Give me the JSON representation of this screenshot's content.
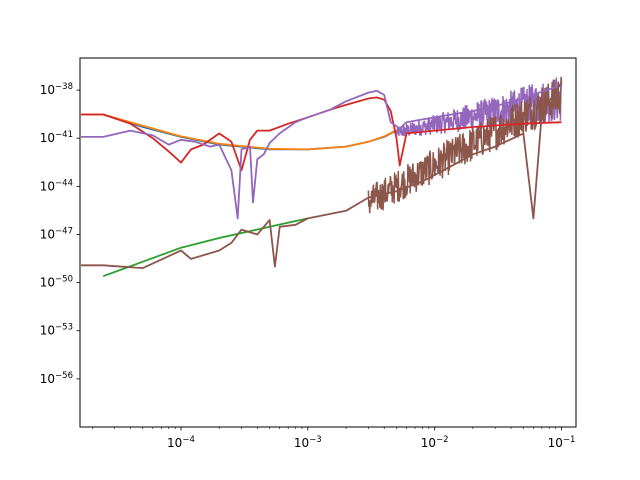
{
  "chart_data": {
    "type": "line",
    "title": "",
    "xlabel": "",
    "ylabel": "",
    "xscale": "log",
    "yscale": "log",
    "grid": false,
    "xlim": [
      1.6e-05,
      0.13
    ],
    "ylim": [
      1e-59,
      1e-36
    ],
    "xticks": [
      {
        "value": 0.0001,
        "label": "10",
        "exp": "−4"
      },
      {
        "value": 0.001,
        "label": "10",
        "exp": "−3"
      },
      {
        "value": 0.01,
        "label": "10",
        "exp": "−2"
      },
      {
        "value": 0.1,
        "label": "10",
        "exp": "−1"
      }
    ],
    "yticks": [
      {
        "value": 1e-38,
        "label": "10",
        "exp": "−38"
      },
      {
        "value": 1e-41,
        "label": "10",
        "exp": "−41"
      },
      {
        "value": 1e-44,
        "label": "10",
        "exp": "−44"
      },
      {
        "value": 1e-47,
        "label": "10",
        "exp": "−47"
      },
      {
        "value": 1e-50,
        "label": "10",
        "exp": "−50"
      },
      {
        "value": 1e-53,
        "label": "10",
        "exp": "−53"
      },
      {
        "value": 1e-56,
        "label": "10",
        "exp": "−56"
      }
    ],
    "series": [
      {
        "color": "#1f77b4",
        "points": [
          [
            1.63e-05,
            3e-40
          ],
          [
            2.44e-05,
            3e-40
          ],
          [
            5e-05,
            5e-41
          ],
          [
            0.0001,
            1.2e-41
          ],
          [
            0.0002,
            4e-42
          ],
          [
            0.0005,
            2e-42
          ],
          [
            0.001,
            2e-42
          ],
          [
            0.002,
            3e-42
          ],
          [
            0.003,
            6e-42
          ],
          [
            0.004,
            1.2e-41
          ],
          [
            0.005,
            3e-41
          ]
        ]
      },
      {
        "color": "#ff7f0e",
        "points": [
          [
            1.63e-05,
            3e-40
          ],
          [
            2.44e-05,
            3e-40
          ],
          [
            5e-05,
            6e-41
          ],
          [
            0.0001,
            1.3e-41
          ],
          [
            0.0002,
            4.5e-42
          ],
          [
            0.0005,
            2.2e-42
          ],
          [
            0.001,
            2e-42
          ],
          [
            0.002,
            3e-42
          ],
          [
            0.003,
            6e-42
          ],
          [
            0.004,
            1.3e-41
          ],
          [
            0.005,
            3.2e-41
          ]
        ]
      },
      {
        "color": "#2ca02c",
        "points": [
          [
            2.44e-05,
            2.5e-50
          ],
          [
            5e-05,
            2e-49
          ],
          [
            0.0001,
            1.5e-48
          ],
          [
            0.0002,
            6e-48
          ],
          [
            0.0005,
            3e-47
          ],
          [
            0.001,
            1e-46
          ]
        ]
      },
      {
        "color": "#d62728",
        "points": [
          [
            1.63e-05,
            3e-40
          ],
          [
            2.44e-05,
            3e-40
          ],
          [
            4e-05,
            8e-41
          ],
          [
            6e-05,
            1e-41
          ],
          [
            8e-05,
            1.5e-42
          ],
          [
            0.0001,
            3e-43
          ],
          [
            0.00012,
            2e-42
          ],
          [
            0.00015,
            4e-42
          ],
          [
            0.0002,
            2e-41
          ],
          [
            0.00025,
            6e-42
          ],
          [
            0.0003,
            1e-43
          ],
          [
            0.00035,
            8e-42
          ],
          [
            0.0004,
            3e-41
          ],
          [
            0.0005,
            3e-41
          ],
          [
            0.0007,
            8e-41
          ],
          [
            0.001,
            2e-40
          ],
          [
            0.0015,
            6e-40
          ],
          [
            0.002,
            1.2e-39
          ],
          [
            0.003,
            3e-39
          ],
          [
            0.0035,
            3.5e-39
          ],
          [
            0.004,
            2.5e-39
          ],
          [
            0.0045,
            5e-40
          ],
          [
            0.005,
            1e-41
          ],
          [
            0.0053,
            2e-43
          ],
          [
            0.006,
            2e-41
          ],
          [
            0.01,
            3e-41
          ],
          [
            0.02,
            5e-41
          ],
          [
            0.05,
            8e-41
          ],
          [
            0.1,
            1e-40
          ]
        ]
      },
      {
        "color": "#9467bd",
        "points": [
          [
            1.63e-05,
            1.2e-41
          ],
          [
            2.44e-05,
            1.2e-41
          ],
          [
            4e-05,
            3e-41
          ],
          [
            6e-05,
            1.5e-41
          ],
          [
            8e-05,
            4e-42
          ],
          [
            0.0001,
            8e-42
          ],
          [
            0.00013,
            6e-42
          ],
          [
            0.00017,
            3e-42
          ],
          [
            0.0002,
            4e-42
          ],
          [
            0.00025,
            1e-43
          ],
          [
            0.00028,
            1e-46
          ],
          [
            0.0003,
            2e-42
          ],
          [
            0.00035,
            3e-42
          ],
          [
            0.00037,
            1e-45
          ],
          [
            0.0004,
            5e-43
          ],
          [
            0.00045,
            1e-42
          ],
          [
            0.0005,
            5e-42
          ],
          [
            0.0006,
            2e-41
          ],
          [
            0.0008,
            1e-40
          ],
          [
            0.001,
            2e-40
          ],
          [
            0.0015,
            6e-40
          ],
          [
            0.002,
            2e-39
          ],
          [
            0.003,
            7e-39
          ],
          [
            0.0035,
            9e-39
          ],
          [
            0.004,
            5e-39
          ],
          [
            0.0045,
            1e-40
          ],
          [
            0.0053,
            4e-41
          ],
          [
            0.006,
            1e-40
          ],
          [
            0.01,
            2e-40
          ],
          [
            0.02,
            5e-40
          ],
          [
            0.03,
            1e-39
          ],
          [
            0.05,
            3e-39
          ],
          [
            0.07,
            8e-39
          ],
          [
            0.1,
            2e-38
          ]
        ]
      },
      {
        "color": "#8c564b",
        "points": [
          [
            1.63e-05,
            1.2e-49
          ],
          [
            2.44e-05,
            1.2e-49
          ],
          [
            5e-05,
            8e-50
          ],
          [
            0.0001,
            1e-48
          ],
          [
            0.00012,
            3e-49
          ],
          [
            0.0002,
            1e-48
          ],
          [
            0.00025,
            3e-48
          ],
          [
            0.0003,
            2e-47
          ],
          [
            0.0004,
            1e-47
          ],
          [
            0.0005,
            8e-47
          ],
          [
            0.00055,
            1e-49
          ],
          [
            0.0006,
            3e-47
          ],
          [
            0.0008,
            4e-47
          ],
          [
            0.001,
            1e-46
          ],
          [
            0.002,
            3e-46
          ],
          [
            0.003,
            2e-45
          ],
          [
            0.005,
            5e-45
          ],
          [
            0.008,
            2e-44
          ],
          [
            0.01,
            5e-44
          ],
          [
            0.02,
            1e-42
          ],
          [
            0.03,
            3e-42
          ],
          [
            0.05,
            2e-41
          ],
          [
            0.06,
            1e-46
          ],
          [
            0.07,
            4e-40
          ],
          [
            0.1,
            3e-38
          ]
        ]
      }
    ],
    "noisy_envelopes": [
      {
        "color": "#9467bd",
        "x_from": 0.005,
        "x_to": 0.1,
        "y_low_start": 1e-41,
        "y_low_end": 1e-40,
        "y_high_start": 5e-41,
        "y_high_end": 1e-37
      },
      {
        "color": "#8c564b",
        "x_from": 0.003,
        "x_to": 0.1,
        "y_low_start": 1e-46,
        "y_low_end": 3e-40,
        "y_high_start": 1e-44,
        "y_high_end": 1e-37
      }
    ]
  }
}
